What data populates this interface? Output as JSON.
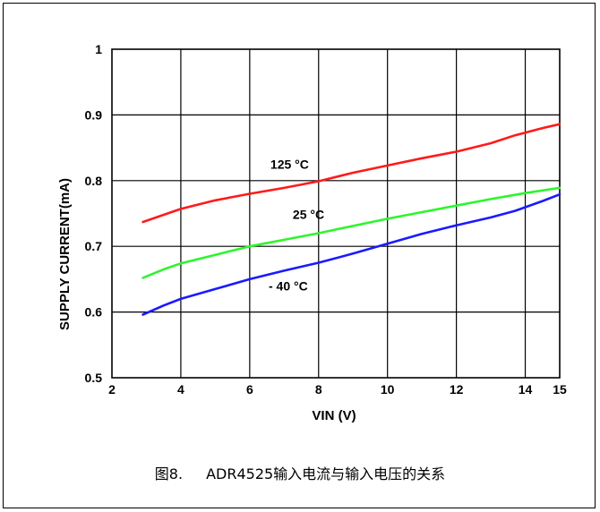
{
  "caption": {
    "figure": "图8.",
    "text": "ADR4525输入电流与输入电压的关系"
  },
  "chart_data": {
    "type": "line",
    "title": "",
    "xlabel": "VIN (V)",
    "ylabel": "SUPPLY CURRENT(mA)",
    "xlim": [
      2,
      15
    ],
    "ylim": [
      0.5,
      1
    ],
    "x_ticks": [
      2,
      4,
      6,
      8,
      10,
      12,
      14,
      15
    ],
    "x_tick_labels": [
      "2",
      "4",
      "6",
      "8",
      "10",
      "12",
      "14",
      "15"
    ],
    "y_ticks": [
      0.5,
      0.6,
      0.7,
      0.8,
      0.9,
      1
    ],
    "y_tick_labels": [
      "0.5",
      "0.6",
      "0.7",
      "0.8",
      "0.9",
      "1"
    ],
    "grid": true,
    "legend": "none",
    "series": [
      {
        "name": "125 °C",
        "color": "#ff1a1a",
        "label_at": [
          6.6,
          0.818
        ],
        "x": [
          2.9,
          3.5,
          4.0,
          5.0,
          6.0,
          7.0,
          8.0,
          9.0,
          10.0,
          11.0,
          12.0,
          13.0,
          13.7,
          14.5,
          15.0
        ],
        "y": [
          0.737,
          0.748,
          0.757,
          0.77,
          0.78,
          0.789,
          0.799,
          0.812,
          0.823,
          0.834,
          0.844,
          0.857,
          0.869,
          0.88,
          0.886
        ]
      },
      {
        "name": "25 °C",
        "color": "#2df52d",
        "label_at": [
          7.25,
          0.742
        ],
        "x": [
          2.9,
          3.5,
          4.0,
          5.0,
          6.0,
          7.0,
          8.0,
          9.0,
          10.0,
          11.0,
          12.0,
          13.0,
          14.0,
          15.0
        ],
        "y": [
          0.652,
          0.665,
          0.674,
          0.687,
          0.7,
          0.71,
          0.72,
          0.731,
          0.742,
          0.752,
          0.762,
          0.772,
          0.781,
          0.789
        ]
      },
      {
        "name": "- 40 °C",
        "color": "#1a1aff",
        "label_at": [
          6.55,
          0.633
        ],
        "x": [
          2.9,
          3.5,
          4.0,
          5.0,
          6.0,
          7.0,
          8.0,
          9.0,
          10.0,
          11.0,
          12.0,
          13.0,
          13.7,
          14.5,
          15.0
        ],
        "y": [
          0.596,
          0.61,
          0.62,
          0.635,
          0.65,
          0.663,
          0.675,
          0.689,
          0.704,
          0.719,
          0.732,
          0.744,
          0.754,
          0.769,
          0.779
        ]
      }
    ]
  }
}
